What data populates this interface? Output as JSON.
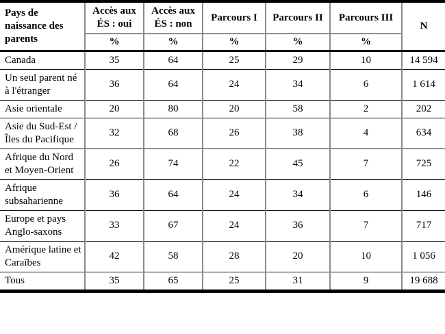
{
  "table": {
    "row_header_label": "Pays de naissance des parents",
    "columns": [
      {
        "title": "Accès aux ÉS : oui",
        "unit": "%"
      },
      {
        "title": "Accès aux ÉS : non",
        "unit": "%"
      },
      {
        "title": "Parcours I",
        "unit": "%"
      },
      {
        "title": "Parcours II",
        "unit": "%"
      },
      {
        "title": "Parcours III",
        "unit": "%"
      }
    ],
    "n_label": "N",
    "rows": [
      {
        "label": "Canada",
        "values": [
          "35",
          "64",
          "25",
          "29",
          "10"
        ],
        "n": "14 594"
      },
      {
        "label": "Un seul parent né à l'étranger",
        "values": [
          "36",
          "64",
          "24",
          "34",
          "6"
        ],
        "n": "1 614"
      },
      {
        "label": "Asie orientale",
        "values": [
          "20",
          "80",
          "20",
          "58",
          "2"
        ],
        "n": "202"
      },
      {
        "label": "Asie du Sud-Est / Îles du Pacifique",
        "values": [
          "32",
          "68",
          "26",
          "38",
          "4"
        ],
        "n": "634"
      },
      {
        "label": "Afrique du Nord et Moyen-Orient",
        "values": [
          "26",
          "74",
          "22",
          "45",
          "7"
        ],
        "n": "725"
      },
      {
        "label": "Afrique subsaharienne",
        "values": [
          "36",
          "64",
          "24",
          "34",
          "6"
        ],
        "n": "146"
      },
      {
        "label": "Europe et pays Anglo-saxons",
        "values": [
          "33",
          "67",
          "24",
          "36",
          "7"
        ],
        "n": "717"
      },
      {
        "label": "Amérique latine et Caraïbes",
        "values": [
          "42",
          "58",
          "28",
          "20",
          "10"
        ],
        "n": "1 056"
      },
      {
        "label": "Tous",
        "values": [
          "35",
          "65",
          "25",
          "31",
          "9"
        ],
        "n": "19 688"
      }
    ]
  },
  "colors": {
    "border_strong": "#000000",
    "border_vertical_gray": "#8a8a8a",
    "background": "#ffffff",
    "text": "#000000"
  }
}
